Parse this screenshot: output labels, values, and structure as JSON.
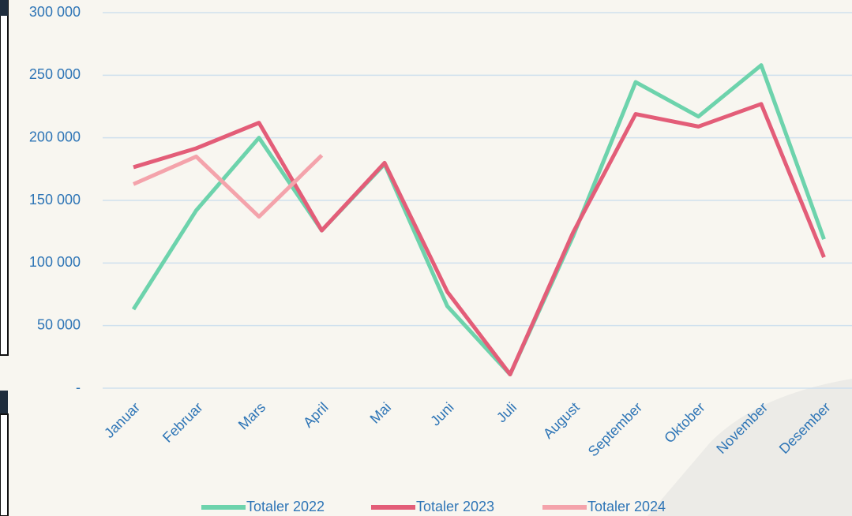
{
  "chart_data": {
    "type": "line",
    "categories": [
      "Januar",
      "Februar",
      "Mars",
      "April",
      "Mai",
      "Juni",
      "Juli",
      "August",
      "September",
      "Oktober",
      "November",
      "Desember"
    ],
    "series": [
      {
        "name": "Totaler 2022",
        "color": "#6dd3ac",
        "values": [
          63000,
          142000,
          200000,
          126000,
          179000,
          65500,
          11000,
          121000,
          244500,
          217000,
          258000,
          119000
        ]
      },
      {
        "name": "Totaler 2023",
        "color": "#e35d78",
        "values": [
          176500,
          191600,
          212000,
          126000,
          180000,
          77000,
          11000,
          124000,
          219000,
          209000,
          227000,
          104600
        ]
      },
      {
        "name": "Totaler 2024",
        "color": "#f4a3ab",
        "values": [
          163000,
          185000,
          137000,
          186000,
          null,
          null,
          null,
          null,
          null,
          null,
          null,
          null
        ]
      }
    ],
    "ylim": [
      0,
      300000
    ],
    "yticks": [
      {
        "value": 0,
        "label": "-"
      },
      {
        "value": 50000,
        "label": "50 000"
      },
      {
        "value": 100000,
        "label": "100 000"
      },
      {
        "value": 150000,
        "label": "150 000"
      },
      {
        "value": 200000,
        "label": "200 000"
      },
      {
        "value": 250000,
        "label": "250 000"
      },
      {
        "value": 300000,
        "label": "300 000"
      }
    ],
    "grid": true,
    "legend": "bottom"
  }
}
